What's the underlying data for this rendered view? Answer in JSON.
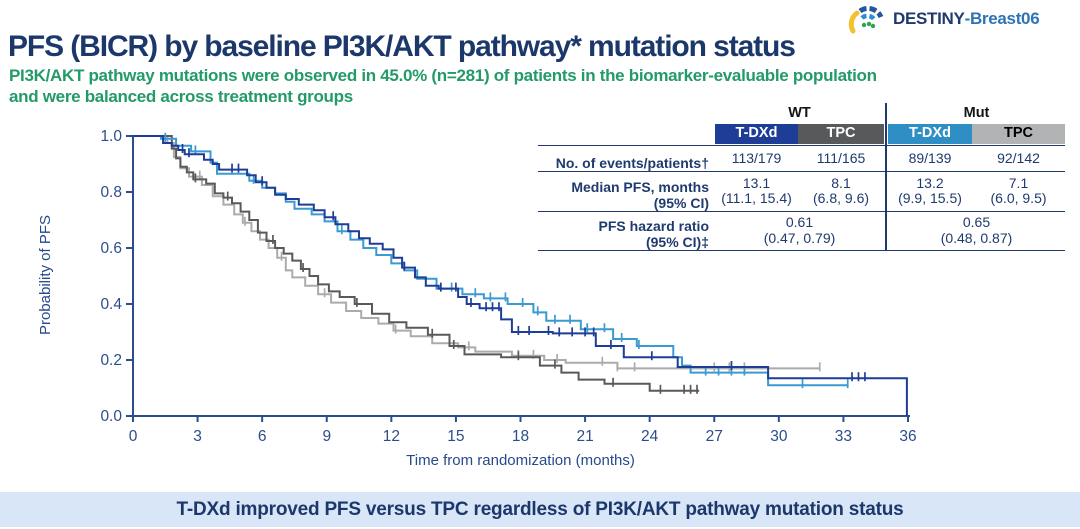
{
  "logo": {
    "text_primary": "DESTINY",
    "text_secondary": "-Breast06"
  },
  "header": {
    "title": "PFS (BICR) by baseline PI3K/AKT pathway* mutation status",
    "subtitle_line1": "PI3K/AKT pathway mutations were observed in 45.0% (n=281) of patients in the biomarker-evaluable population",
    "subtitle_line2": "and were balanced across treatment groups"
  },
  "table": {
    "group_headers": [
      {
        "label": "WT"
      },
      {
        "label": "Mut"
      }
    ],
    "col_headers": [
      {
        "label": "T-DXd",
        "bg": "#1e3d96",
        "fg": "#ffffff"
      },
      {
        "label": "TPC",
        "bg": "#58595b",
        "fg": "#ffffff"
      },
      {
        "label": "T-DXd",
        "bg": "#2f8fc4",
        "fg": "#ffffff"
      },
      {
        "label": "TPC",
        "bg": "#b1b3b5",
        "fg": "#000000"
      }
    ],
    "rows": {
      "events": {
        "label": "No. of events/patients†",
        "values": [
          "113/179",
          "111/165",
          "89/139",
          "92/142"
        ]
      },
      "median": {
        "label_line1": "Median PFS, months",
        "label_line2": "(95% CI)",
        "values_line1": [
          "13.1",
          "8.1",
          "13.2",
          "7.1"
        ],
        "values_line2": [
          "(11.1, 15.4)",
          "(6.8, 9.6)",
          "(9.9, 15.5)",
          "(6.0, 9.5)"
        ]
      },
      "hazard_ratio": {
        "label_line1": "PFS hazard ratio",
        "label_line2": "(95% CI)‡",
        "values_line1": [
          "0.61",
          "0.65"
        ],
        "values_line2": [
          "(0.47, 0.79)",
          "(0.48, 0.87)"
        ]
      }
    }
  },
  "chart_data": {
    "type": "line",
    "subtype": "kaplan-meier-step",
    "xlabel": "Time from randomization (months)",
    "ylabel": "Probability of PFS",
    "xlim": [
      0,
      36
    ],
    "ylim": [
      0.0,
      1.0
    ],
    "xticks": [
      0,
      3,
      6,
      9,
      12,
      15,
      18,
      21,
      24,
      27,
      30,
      33,
      36
    ],
    "ytick_labels": [
      "0.0",
      "0.2",
      "0.4",
      "0.6",
      "0.8",
      "1.0"
    ],
    "grid": false,
    "legend": "none (series identified by table header colors)",
    "series": [
      {
        "name": "TPC (Mut)",
        "color": "#ababad",
        "median_months": 7.1,
        "steps": [
          [
            0,
            1.0
          ],
          [
            1.6,
            0.975
          ],
          [
            1.9,
            0.925
          ],
          [
            2.2,
            0.885
          ],
          [
            2.6,
            0.855
          ],
          [
            3.2,
            0.825
          ],
          [
            3.7,
            0.785
          ],
          [
            4.2,
            0.755
          ],
          [
            4.7,
            0.72
          ],
          [
            5.1,
            0.69
          ],
          [
            5.5,
            0.66
          ],
          [
            5.9,
            0.63
          ],
          [
            6.3,
            0.6
          ],
          [
            6.7,
            0.565
          ],
          [
            7.1,
            0.52
          ],
          [
            7.4,
            0.495
          ],
          [
            8.0,
            0.465
          ],
          [
            8.6,
            0.435
          ],
          [
            9.2,
            0.405
          ],
          [
            9.9,
            0.375
          ],
          [
            10.6,
            0.35
          ],
          [
            11.4,
            0.33
          ],
          [
            12.1,
            0.305
          ],
          [
            12.9,
            0.285
          ],
          [
            13.9,
            0.26
          ],
          [
            15.1,
            0.245
          ],
          [
            15.9,
            0.23
          ],
          [
            17.6,
            0.215
          ],
          [
            19.1,
            0.2
          ],
          [
            20.1,
            0.19
          ],
          [
            22.5,
            0.17
          ],
          [
            31.9,
            0.17
          ]
        ],
        "censors": [
          3.1,
          5.2,
          6.9,
          8.9,
          12.2,
          15.6,
          17.9,
          18.6,
          19.7,
          21.8,
          22.5,
          23.3,
          27.0,
          27.7,
          28.4,
          31.9
        ]
      },
      {
        "name": "TPC (WT)",
        "color": "#58595b",
        "median_months": 8.1,
        "steps": [
          [
            0,
            1.0
          ],
          [
            1.7,
            1.0
          ],
          [
            1.8,
            0.955
          ],
          [
            2.0,
            0.92
          ],
          [
            2.2,
            0.89
          ],
          [
            2.5,
            0.87
          ],
          [
            2.8,
            0.845
          ],
          [
            3.4,
            0.83
          ],
          [
            3.8,
            0.795
          ],
          [
            4.2,
            0.78
          ],
          [
            4.6,
            0.76
          ],
          [
            5.0,
            0.73
          ],
          [
            5.4,
            0.7
          ],
          [
            5.8,
            0.655
          ],
          [
            6.2,
            0.625
          ],
          [
            6.6,
            0.6
          ],
          [
            7.0,
            0.58
          ],
          [
            7.4,
            0.555
          ],
          [
            7.8,
            0.525
          ],
          [
            8.2,
            0.5
          ],
          [
            8.6,
            0.47
          ],
          [
            9.1,
            0.445
          ],
          [
            9.6,
            0.425
          ],
          [
            10.3,
            0.4
          ],
          [
            11.1,
            0.365
          ],
          [
            11.9,
            0.335
          ],
          [
            12.7,
            0.315
          ],
          [
            13.7,
            0.29
          ],
          [
            14.7,
            0.25
          ],
          [
            15.4,
            0.22
          ],
          [
            17.1,
            0.21
          ],
          [
            18.9,
            0.18
          ],
          [
            19.9,
            0.155
          ],
          [
            20.7,
            0.13
          ],
          [
            21.9,
            0.115
          ],
          [
            24.0,
            0.09
          ],
          [
            26.3,
            0.09
          ]
        ],
        "censors": [
          2.9,
          4.4,
          6.5,
          7.9,
          10.4,
          13.9,
          14.9,
          17.9,
          19.6,
          22.3,
          24.5,
          25.6,
          25.9,
          26.2
        ]
      },
      {
        "name": "T-DXd (Mut)",
        "color": "#3a9ad2",
        "median_months": 13.2,
        "steps": [
          [
            0,
            1.0
          ],
          [
            1.3,
            0.99
          ],
          [
            2.0,
            0.965
          ],
          [
            2.7,
            0.945
          ],
          [
            3.6,
            0.905
          ],
          [
            3.9,
            0.865
          ],
          [
            5.4,
            0.84
          ],
          [
            6.0,
            0.815
          ],
          [
            6.6,
            0.795
          ],
          [
            7.1,
            0.765
          ],
          [
            7.5,
            0.74
          ],
          [
            8.3,
            0.72
          ],
          [
            8.9,
            0.695
          ],
          [
            9.5,
            0.66
          ],
          [
            10.1,
            0.63
          ],
          [
            10.7,
            0.6
          ],
          [
            11.3,
            0.575
          ],
          [
            12.0,
            0.545
          ],
          [
            12.6,
            0.52
          ],
          [
            13.2,
            0.49
          ],
          [
            14.1,
            0.455
          ],
          [
            15.3,
            0.435
          ],
          [
            16.3,
            0.42
          ],
          [
            17.4,
            0.4
          ],
          [
            18.6,
            0.37
          ],
          [
            19.2,
            0.34
          ],
          [
            20.8,
            0.31
          ],
          [
            22.3,
            0.275
          ],
          [
            23.4,
            0.25
          ],
          [
            25.1,
            0.21
          ],
          [
            25.5,
            0.18
          ],
          [
            25.9,
            0.155
          ],
          [
            29.5,
            0.11
          ],
          [
            33.2,
            0.11
          ]
        ],
        "censors": [
          1.5,
          2.9,
          5.6,
          9.7,
          14.8,
          15.9,
          16.6,
          17.3,
          18.1,
          18.8,
          19.6,
          20.3,
          21.1,
          21.9,
          22.7,
          23.5,
          26.6,
          27.2,
          27.8,
          28.4,
          31.1,
          33.2
        ]
      },
      {
        "name": "T-DXd (WT)",
        "color": "#1e3d96",
        "median_months": 13.1,
        "steps": [
          [
            0,
            1.0
          ],
          [
            1.2,
            1.0
          ],
          [
            1.4,
            0.975
          ],
          [
            1.8,
            0.965
          ],
          [
            2.1,
            0.95
          ],
          [
            2.4,
            0.935
          ],
          [
            3.3,
            0.915
          ],
          [
            3.7,
            0.9
          ],
          [
            4.0,
            0.88
          ],
          [
            5.3,
            0.86
          ],
          [
            5.7,
            0.835
          ],
          [
            6.2,
            0.815
          ],
          [
            6.6,
            0.79
          ],
          [
            7.1,
            0.775
          ],
          [
            7.7,
            0.755
          ],
          [
            8.4,
            0.735
          ],
          [
            8.9,
            0.71
          ],
          [
            9.4,
            0.685
          ],
          [
            10.0,
            0.66
          ],
          [
            10.5,
            0.635
          ],
          [
            11.0,
            0.615
          ],
          [
            11.6,
            0.595
          ],
          [
            12.1,
            0.565
          ],
          [
            12.5,
            0.53
          ],
          [
            13.1,
            0.495
          ],
          [
            13.6,
            0.465
          ],
          [
            14.2,
            0.455
          ],
          [
            15.1,
            0.425
          ],
          [
            15.5,
            0.4
          ],
          [
            16.1,
            0.385
          ],
          [
            17.1,
            0.345
          ],
          [
            17.6,
            0.3
          ],
          [
            19.5,
            0.295
          ],
          [
            21.5,
            0.25
          ],
          [
            22.8,
            0.21
          ],
          [
            25.3,
            0.175
          ],
          [
            29.5,
            0.135
          ],
          [
            35.9,
            0.135
          ],
          [
            35.95,
            0.0
          ]
        ],
        "censors": [
          2.3,
          2.6,
          4.6,
          4.9,
          6.0,
          9.3,
          12.6,
          14.3,
          15.0,
          15.7,
          16.4,
          16.7,
          17.0,
          17.9,
          18.4,
          19.3,
          19.8,
          20.4,
          21.0,
          21.4,
          22.2,
          24.1,
          27.8,
          33.4,
          33.7,
          34.0
        ]
      }
    ]
  },
  "banner": {
    "text": "T-DXd improved PFS versus TPC regardless of PI3K/AKT pathway mutation status"
  },
  "colors": {
    "axis": "#2b4d8c",
    "navy": "#1f3a6d",
    "banner_bg": "#d9e6f8"
  }
}
